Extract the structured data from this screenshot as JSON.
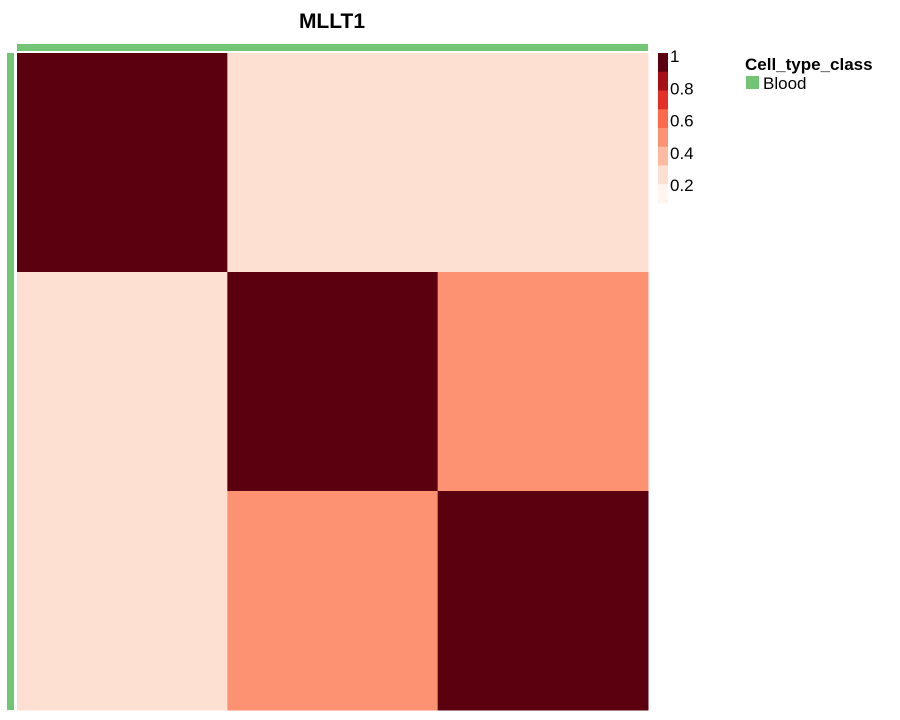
{
  "chart_data": {
    "type": "heatmap",
    "title": "MLLT1",
    "rows": 3,
    "cols": 3,
    "values": [
      [
        1,
        0.1,
        0.1
      ],
      [
        0.1,
        1,
        0.45
      ],
      [
        0.1,
        0.45,
        1
      ]
    ],
    "colorbar": {
      "ticks": [
        "1",
        "0.8",
        "0.6",
        "0.4",
        "0.2"
      ],
      "colors": [
        "#5a000f",
        "#a60f15",
        "#e32f27",
        "#fb6a4a",
        "#fc9272",
        "#fcbba1",
        "#fee0d2",
        "#fff5f0"
      ]
    },
    "annotation": {
      "title": "Cell_type_class",
      "entries": [
        {
          "label": "Blood",
          "color": "#74c476"
        }
      ]
    }
  }
}
